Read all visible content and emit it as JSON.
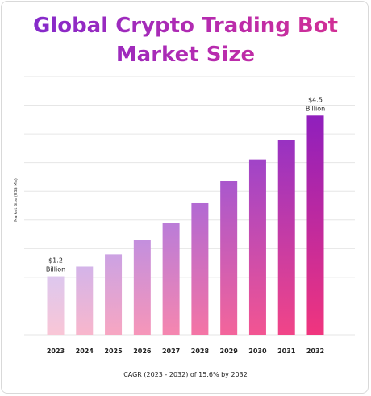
{
  "header": {
    "title_line1": "Global Crypto Trading Bot",
    "title_line2": "Market Size"
  },
  "footnote": "CAGR (2023 - 2032) of 15.6% by 2032",
  "chart_data": {
    "type": "bar",
    "title": "Global Crypto Trading Bot Market Size",
    "ylabel": "Market Size (US$ Mn)",
    "xlabel": "",
    "categories": [
      "2023",
      "2024",
      "2025",
      "2026",
      "2027",
      "2028",
      "2029",
      "2030",
      "2031",
      "2032"
    ],
    "values": [
      1.2,
      1.4,
      1.65,
      1.95,
      2.3,
      2.7,
      3.15,
      3.6,
      4.0,
      4.5
    ],
    "ylim": [
      0,
      5.3
    ],
    "grid": true,
    "annotations": [
      {
        "category": "2023",
        "lines": [
          "$1.2",
          "Billion"
        ]
      },
      {
        "category": "2032",
        "lines": [
          "$4.5",
          "Billion"
        ]
      }
    ],
    "colors": {
      "start_light": "#ddc7ee",
      "start_pink": "#f9c6d6",
      "end_purple": "#8f1fbd",
      "end_pink": "#f0357e"
    }
  }
}
